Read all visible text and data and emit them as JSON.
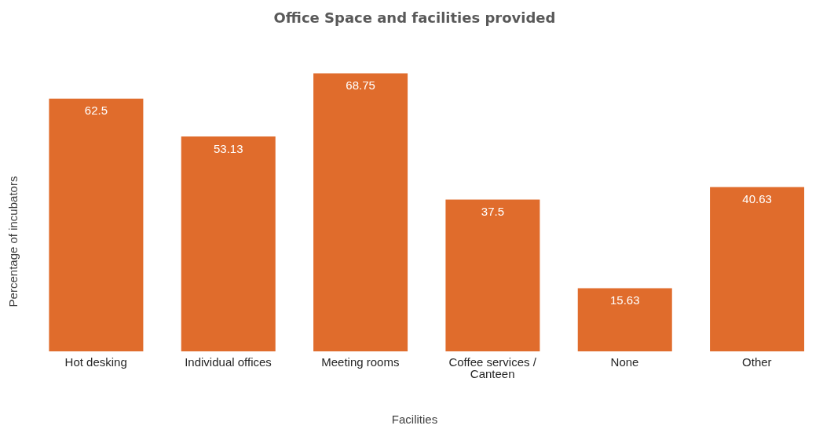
{
  "chart_data": {
    "type": "bar",
    "title": "Office Space and facilities provided",
    "xlabel": "Facilities",
    "ylabel": "Percentage of incubators",
    "categories": [
      "Hot desking",
      "Individual offices",
      "Meeting rooms",
      "Coffee services / Canteen",
      "None",
      "Other"
    ],
    "values": [
      62.5,
      53.13,
      68.75,
      37.5,
      15.63,
      40.63
    ],
    "color": "#e06c2c",
    "data_labels": true,
    "grid": false,
    "legend": false
  }
}
